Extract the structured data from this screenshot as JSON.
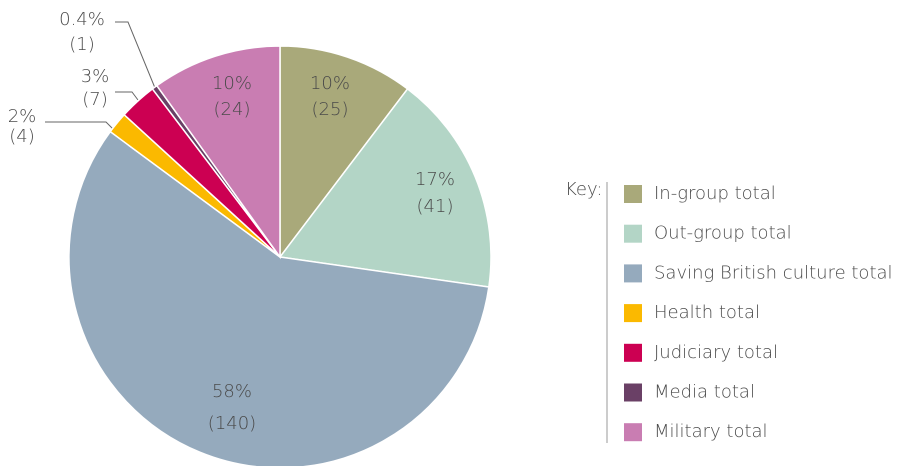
{
  "chart_data": {
    "type": "pie",
    "categories": [
      "In-group total",
      "Out-group total",
      "Saving British culture total",
      "Health total",
      "Judiciary total",
      "Media total",
      "Military total"
    ],
    "values": [
      25,
      41,
      140,
      4,
      7,
      1,
      24
    ],
    "value_labels": [
      "(25)",
      "(41)",
      "(140)",
      "(4)",
      "(7)",
      "(1)",
      "(24)"
    ],
    "percent_values": [
      10,
      17,
      58,
      2,
      3,
      0.4,
      10
    ],
    "percent_labels": [
      "10%",
      "17%",
      "58%",
      "2%",
      "3%",
      "0.4%",
      "10%"
    ],
    "colors": [
      "#a9a97a",
      "#b3d5c6",
      "#95aabd",
      "#fbb900",
      "#cc0052",
      "#6a4066",
      "#c97db2"
    ],
    "legend_title": "Key:",
    "legend": "right"
  }
}
